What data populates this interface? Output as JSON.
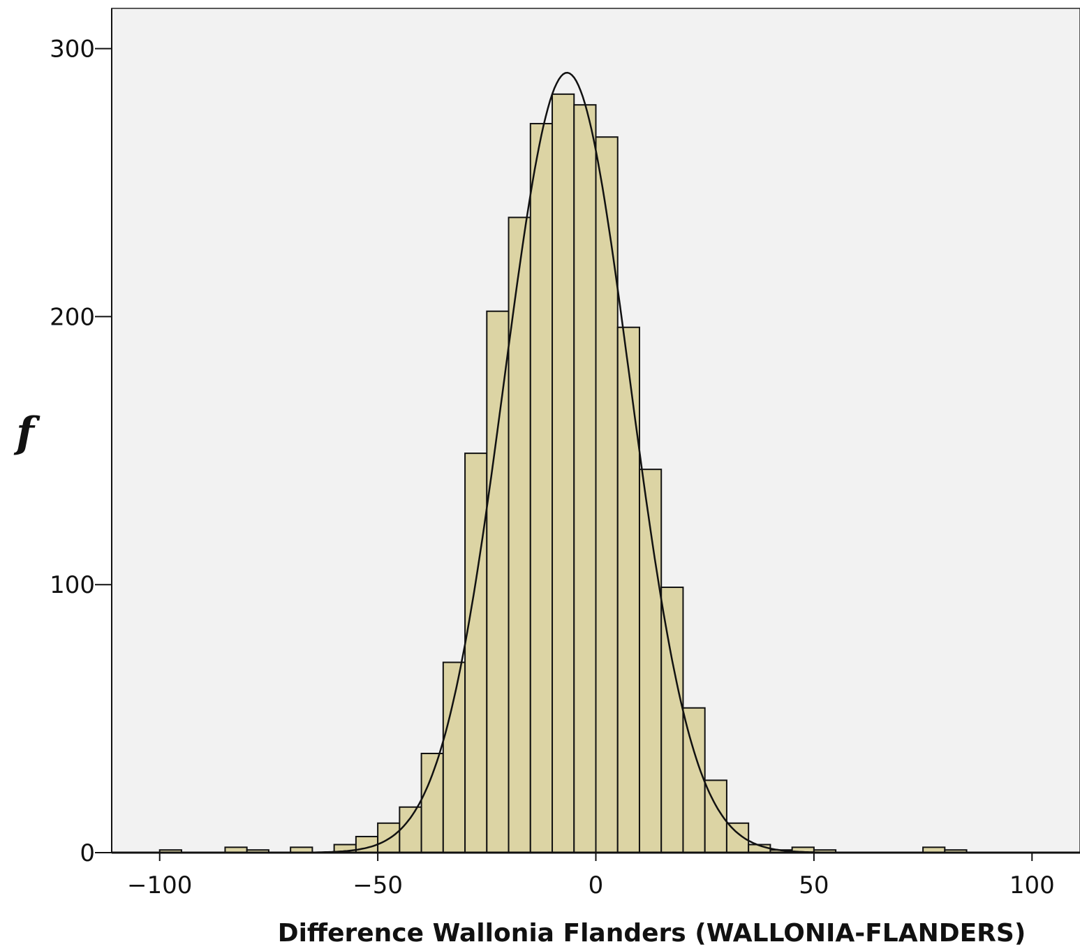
{
  "chart_data": {
    "type": "bar",
    "subtype": "histogram",
    "title": "",
    "xlabel": "Difference Wallonia Flanders (WALLONIA-FLANDERS)",
    "ylabel": "f",
    "xlim": [
      -111,
      111
    ],
    "ylim": [
      0,
      315
    ],
    "xticks": [
      -100,
      -50,
      0,
      50,
      100
    ],
    "xtick_labels": [
      "−100",
      "−50",
      "0",
      "50",
      "100"
    ],
    "yticks": [
      0,
      100,
      200,
      300
    ],
    "ytick_labels": [
      "0",
      "100",
      "200",
      "300"
    ],
    "bin_width": 5,
    "bins": [
      {
        "x0": -100,
        "x1": -95,
        "count": 1
      },
      {
        "x0": -85,
        "x1": -80,
        "count": 2
      },
      {
        "x0": -80,
        "x1": -75,
        "count": 1
      },
      {
        "x0": -70,
        "x1": -65,
        "count": 2
      },
      {
        "x0": -60,
        "x1": -55,
        "count": 3
      },
      {
        "x0": -55,
        "x1": -50,
        "count": 6
      },
      {
        "x0": -50,
        "x1": -45,
        "count": 11
      },
      {
        "x0": -45,
        "x1": -40,
        "count": 17
      },
      {
        "x0": -40,
        "x1": -35,
        "count": 37
      },
      {
        "x0": -35,
        "x1": -30,
        "count": 71
      },
      {
        "x0": -30,
        "x1": -25,
        "count": 149
      },
      {
        "x0": -25,
        "x1": -20,
        "count": 202
      },
      {
        "x0": -20,
        "x1": -15,
        "count": 237
      },
      {
        "x0": -15,
        "x1": -10,
        "count": 272
      },
      {
        "x0": -10,
        "x1": -5,
        "count": 283
      },
      {
        "x0": -5,
        "x1": 0,
        "count": 279
      },
      {
        "x0": 0,
        "x1": 5,
        "count": 267
      },
      {
        "x0": 5,
        "x1": 10,
        "count": 196
      },
      {
        "x0": 10,
        "x1": 15,
        "count": 143
      },
      {
        "x0": 15,
        "x1": 20,
        "count": 99
      },
      {
        "x0": 20,
        "x1": 25,
        "count": 54
      },
      {
        "x0": 25,
        "x1": 30,
        "count": 27
      },
      {
        "x0": 30,
        "x1": 35,
        "count": 11
      },
      {
        "x0": 35,
        "x1": 40,
        "count": 3
      },
      {
        "x0": 40,
        "x1": 45,
        "count": 1
      },
      {
        "x0": 45,
        "x1": 50,
        "count": 2
      },
      {
        "x0": 50,
        "x1": 55,
        "count": 1
      },
      {
        "x0": 75,
        "x1": 80,
        "count": 2
      },
      {
        "x0": 80,
        "x1": 85,
        "count": 1
      }
    ],
    "normal_curve": {
      "mean": -6.6,
      "sd": 14.4,
      "peak": 291
    },
    "grid": false,
    "legend": "none",
    "colors": {
      "plot_background": "#f2f2f2",
      "bar_fill": "#dcd4a4",
      "bar_stroke": "#111111",
      "curve": "#111111"
    }
  }
}
